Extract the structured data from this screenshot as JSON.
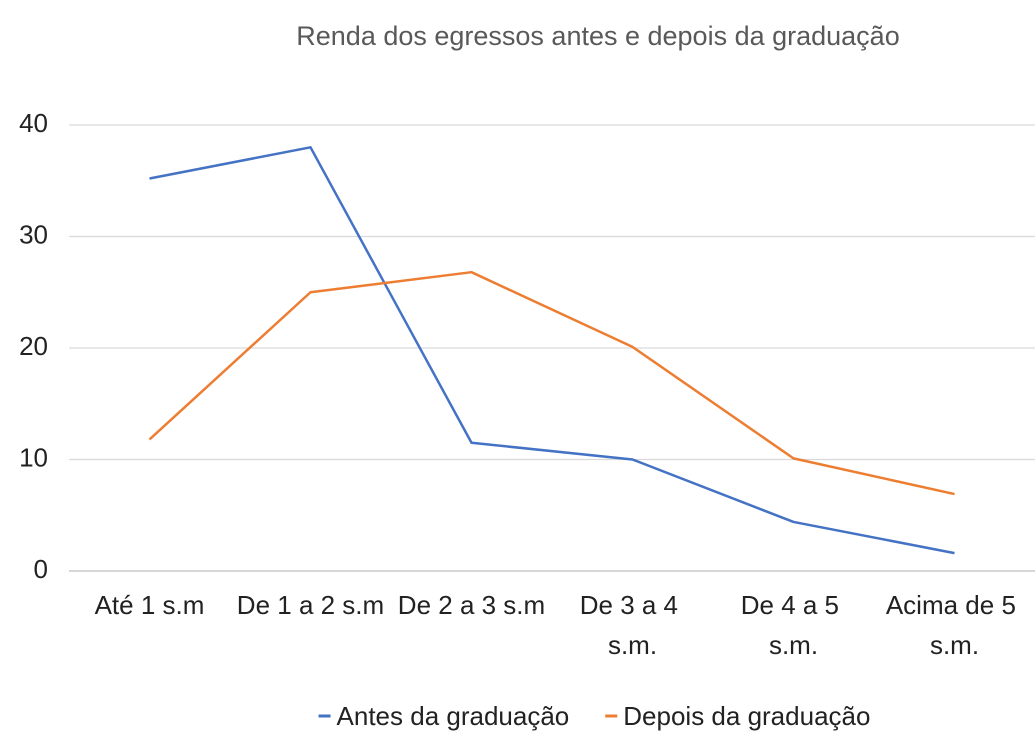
{
  "chart_data": {
    "type": "line",
    "title": "Renda dos egressos antes e depois da graduação",
    "categories": [
      "Até 1 s.m",
      "De 1 a 2 s.m",
      "De 2 a 3 s.m",
      "De 3 a 4 s.m.",
      "De 4 a 5 s.m.",
      "Acima de 5 s.m."
    ],
    "series": [
      {
        "name": "Antes da graduação",
        "color": "#4472c4",
        "values": [
          35.2,
          38.0,
          11.5,
          10.0,
          4.4,
          1.6
        ]
      },
      {
        "name": "Depois da graduação",
        "color": "#ed7d31",
        "values": [
          11.8,
          25.0,
          26.8,
          20.1,
          10.1,
          6.9
        ]
      }
    ],
    "ylim": [
      0,
      40
    ],
    "yticks": [
      0,
      10,
      20,
      30,
      40
    ],
    "grid": true,
    "legend": "bottom"
  }
}
